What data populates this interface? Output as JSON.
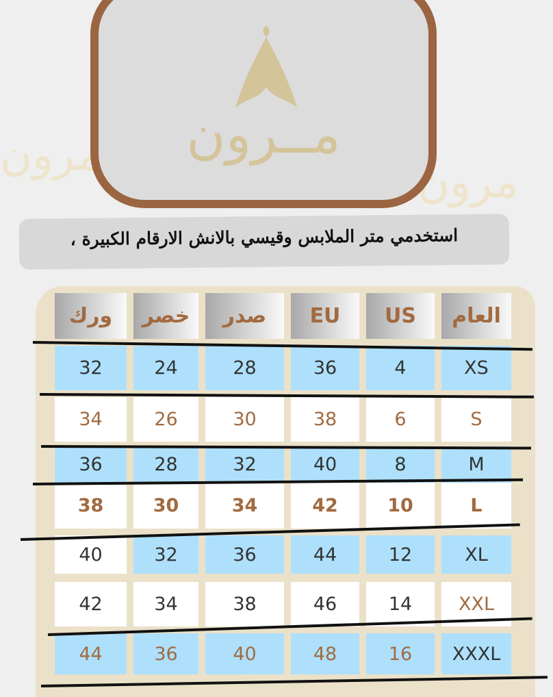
{
  "logo": {
    "text": "مــرون",
    "frame_color": "#9a6540",
    "mark_color": "#d4c49a"
  },
  "instruction": "استخدمي متر الملابس وقيسي بالانش الارقام الكبيرة ،",
  "colors": {
    "blue": "#aee0fb",
    "white": "#ffffff",
    "brown": "#a26a40",
    "dark": "#333333"
  },
  "table": {
    "headers": [
      "ورك",
      "خصر",
      "صدر",
      "EU",
      "US",
      "العام"
    ],
    "rows": [
      {
        "size": "XS",
        "cells": [
          "32",
          "24",
          "28",
          "36",
          "4",
          "XS"
        ],
        "bg": "blue",
        "text": [
          "dark",
          "dark",
          "dark",
          "dark",
          "dark",
          "dark"
        ],
        "bold": false
      },
      {
        "size": "S",
        "cells": [
          "34",
          "26",
          "30",
          "38",
          "6",
          "S"
        ],
        "bg": "white",
        "text": [
          "brown",
          "brown",
          "brown",
          "brown",
          "brown",
          "brown"
        ],
        "bold": false
      },
      {
        "size": "M",
        "cells": [
          "36",
          "28",
          "32",
          "40",
          "8",
          "M"
        ],
        "bg": "blue",
        "text": [
          "dark",
          "dark",
          "dark",
          "dark",
          "dark",
          "dark"
        ],
        "bold": false
      },
      {
        "size": "L",
        "cells": [
          "38",
          "30",
          "34",
          "42",
          "10",
          "L"
        ],
        "bg": "white",
        "text": [
          "brown",
          "brown",
          "brown",
          "brown",
          "brown",
          "brown"
        ],
        "bold": true
      },
      {
        "size": "XL",
        "cells": [
          "40",
          "32",
          "36",
          "44",
          "12",
          "XL"
        ],
        "bg": "blue",
        "text": [
          "dark",
          "dark",
          "dark",
          "dark",
          "dark",
          "dark"
        ],
        "bold": false
      },
      {
        "size": "XXL",
        "cells": [
          "42",
          "34",
          "38",
          "46",
          "14",
          "XXL"
        ],
        "bg": "white",
        "text": [
          "dark",
          "dark",
          "dark",
          "dark",
          "dark",
          "brown"
        ],
        "bold": false
      },
      {
        "size": "XXXL",
        "cells": [
          "44",
          "36",
          "40",
          "48",
          "16",
          "XXXL"
        ],
        "bg": "blue",
        "text": [
          "brown",
          "brown",
          "brown",
          "brown",
          "brown",
          "dark"
        ],
        "bold": false
      }
    ]
  }
}
